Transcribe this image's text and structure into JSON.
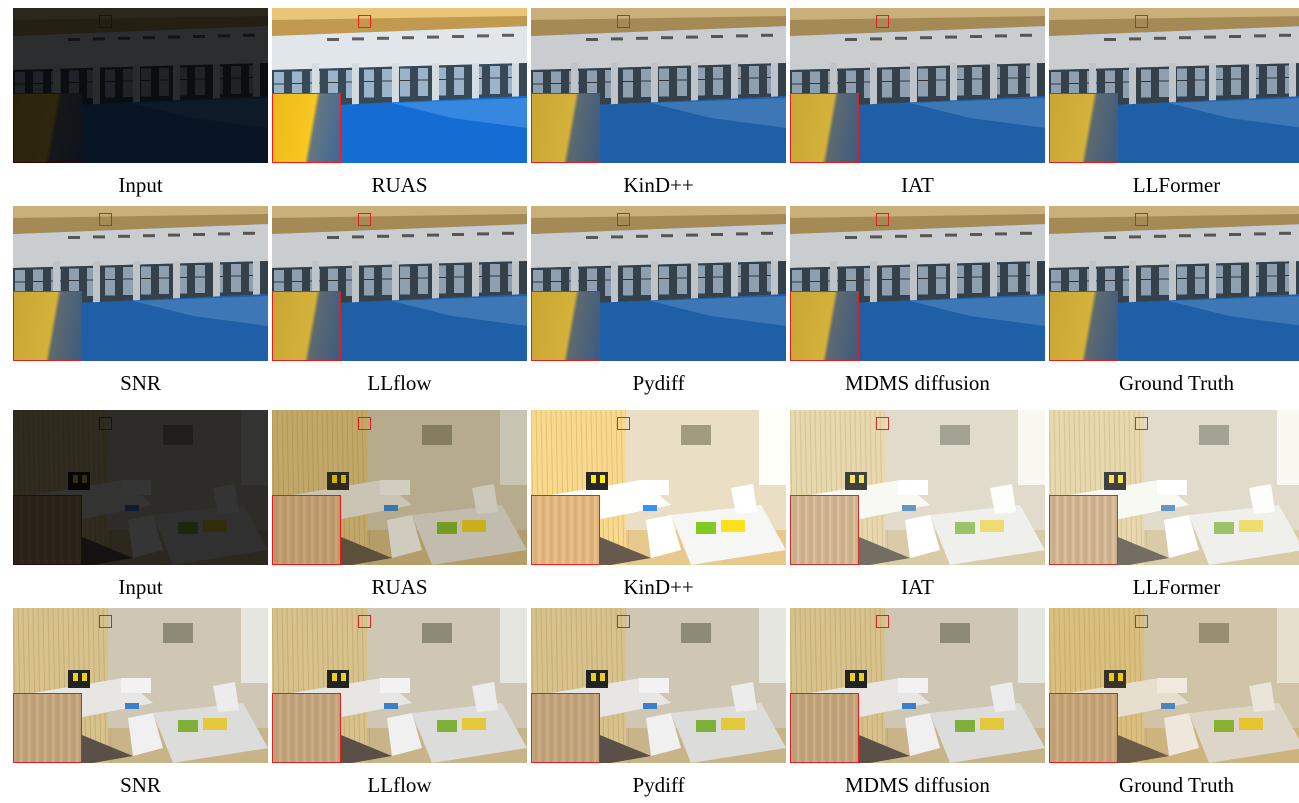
{
  "rows": [
    {
      "scene": "hall",
      "items": [
        {
          "label": "Input",
          "tone": "dark"
        },
        {
          "label": "RUAS",
          "tone": "bright"
        },
        {
          "label": "KinD++",
          "tone": "normal"
        },
        {
          "label": "IAT",
          "tone": "normal"
        },
        {
          "label": "LLFormer",
          "tone": "normal"
        }
      ]
    },
    {
      "scene": "hall",
      "items": [
        {
          "label": "SNR",
          "tone": "normal"
        },
        {
          "label": "LLflow",
          "tone": "normal"
        },
        {
          "label": "Pydiff",
          "tone": "normal"
        },
        {
          "label": "MDMS diffusion",
          "tone": "normal"
        },
        {
          "label": "Ground Truth",
          "tone": "normal"
        }
      ]
    },
    {
      "scene": "room",
      "items": [
        {
          "label": "Input",
          "tone": "dark"
        },
        {
          "label": "RUAS",
          "tone": "noisy"
        },
        {
          "label": "KinD++",
          "tone": "bright"
        },
        {
          "label": "IAT",
          "tone": "pale"
        },
        {
          "label": "LLFormer",
          "tone": "pale"
        }
      ]
    },
    {
      "scene": "room",
      "items": [
        {
          "label": "SNR",
          "tone": "normal"
        },
        {
          "label": "LLflow",
          "tone": "normal"
        },
        {
          "label": "Pydiff",
          "tone": "normal"
        },
        {
          "label": "MDMS diffusion",
          "tone": "normal"
        },
        {
          "label": "Ground Truth",
          "tone": "warm"
        }
      ]
    }
  ],
  "zoom_box_color": "#e02020"
}
